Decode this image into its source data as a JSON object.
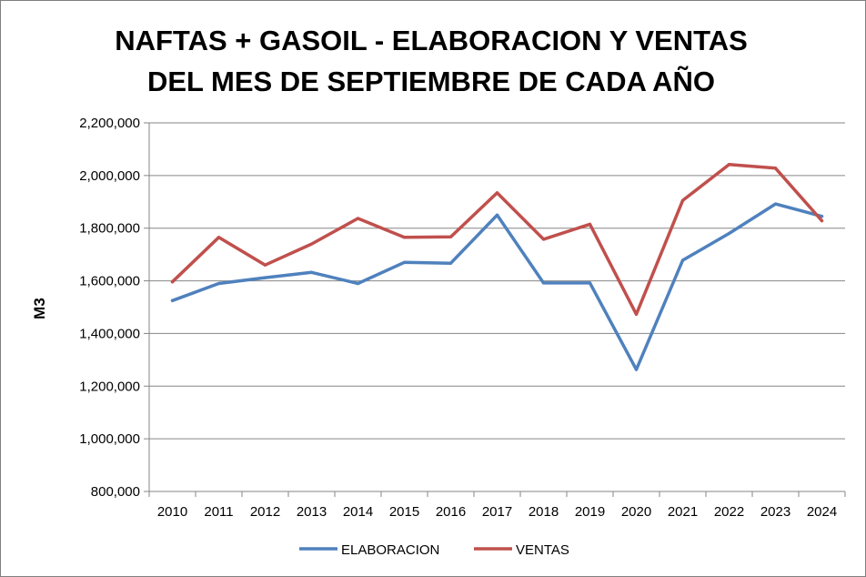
{
  "chart_data": {
    "type": "line",
    "title_lines": [
      "NAFTAS + GASOIL - ELABORACION Y VENTAS",
      "DEL MES DE SEPTIEMBRE DE CADA AÑO"
    ],
    "xlabel": "",
    "ylabel": "M3",
    "categories": [
      "2010",
      "2011",
      "2012",
      "2013",
      "2014",
      "2015",
      "2016",
      "2017",
      "2018",
      "2019",
      "2020",
      "2021",
      "2022",
      "2023",
      "2024"
    ],
    "ylim": [
      800000,
      2200000
    ],
    "y_ticks": [
      800000,
      1000000,
      1200000,
      1400000,
      1600000,
      1800000,
      2000000,
      2200000
    ],
    "y_tick_labels": [
      "800,000",
      "1,000,000",
      "1,200,000",
      "1,400,000",
      "1,600,000",
      "1,800,000",
      "2,000,000",
      "2,200,000"
    ],
    "grid": true,
    "legend_position": "bottom",
    "series": [
      {
        "name": "ELABORACION",
        "color": "#4f81bd",
        "values": [
          1525000,
          1590000,
          1612000,
          1632000,
          1590000,
          1670000,
          1667000,
          1850000,
          1592000,
          1592000,
          1263000,
          1678000,
          1780000,
          1892000,
          1845000
        ]
      },
      {
        "name": "VENTAS",
        "color": "#c0504d",
        "values": [
          1596000,
          1765000,
          1660000,
          1740000,
          1837000,
          1765000,
          1767000,
          1934000,
          1758000,
          1815000,
          1473000,
          1905000,
          2042000,
          2028000,
          1828000
        ]
      }
    ]
  }
}
